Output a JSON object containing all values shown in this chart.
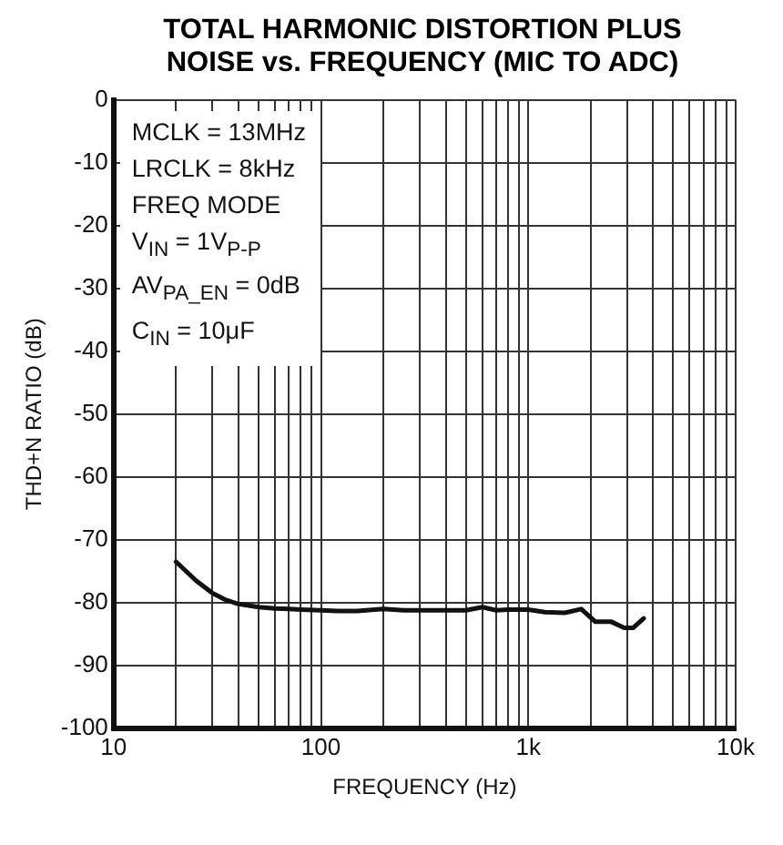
{
  "chart_data": {
    "type": "line",
    "title": "TOTAL HARMONIC DISTORTION PLUS NOISE vs. FREQUENCY (MIC TO ADC)",
    "xlabel": "FREQUENCY (Hz)",
    "ylabel": "THD+N RATIO (dB)",
    "x": [
      20,
      25,
      30,
      35,
      40,
      50,
      60,
      70,
      80,
      100,
      120,
      150,
      200,
      250,
      300,
      400,
      500,
      600,
      700,
      800,
      1000,
      1200,
      1500,
      1800,
      2100,
      2500,
      2900,
      3200,
      3600
    ],
    "series": [
      {
        "color": "#111111",
        "values": [
          -73.5,
          -76.5,
          -78.5,
          -79.6,
          -80.2,
          -80.7,
          -80.9,
          -81,
          -81.1,
          -81.2,
          -81.3,
          -81.3,
          -81,
          -81.2,
          -81.2,
          -81.2,
          -81.2,
          -80.7,
          -81.2,
          -81.1,
          -81.1,
          -81.5,
          -81.6,
          -81,
          -83,
          -83,
          -84,
          -84,
          -82.5
        ]
      }
    ],
    "log": "x",
    "xlim": [
      10,
      10000
    ],
    "xticks": [
      {
        "value": 10,
        "label": "10"
      },
      {
        "value": 20,
        "label": null
      },
      {
        "value": 30,
        "label": null
      },
      {
        "value": 40,
        "label": null
      },
      {
        "value": 50,
        "label": null
      },
      {
        "value": 60,
        "label": null
      },
      {
        "value": 70,
        "label": null
      },
      {
        "value": 80,
        "label": null
      },
      {
        "value": 90,
        "label": null
      },
      {
        "value": 100,
        "label": "100"
      },
      {
        "value": 200,
        "label": null
      },
      {
        "value": 300,
        "label": null
      },
      {
        "value": 400,
        "label": null
      },
      {
        "value": 500,
        "label": null
      },
      {
        "value": 600,
        "label": null
      },
      {
        "value": 700,
        "label": null
      },
      {
        "value": 800,
        "label": null
      },
      {
        "value": 900,
        "label": null
      },
      {
        "value": 1000,
        "label": "1k"
      },
      {
        "value": 2000,
        "label": null
      },
      {
        "value": 3000,
        "label": null
      },
      {
        "value": 4000,
        "label": null
      },
      {
        "value": 5000,
        "label": null
      },
      {
        "value": 6000,
        "label": null
      },
      {
        "value": 7000,
        "label": null
      },
      {
        "value": 8000,
        "label": null
      },
      {
        "value": 9000,
        "label": null
      },
      {
        "value": 10000,
        "label": "10k"
      }
    ],
    "ylim": [
      -100,
      0
    ],
    "yticks": [
      -100,
      -90,
      -80,
      -70,
      -60,
      -50,
      -40,
      -30,
      -20,
      -10,
      0
    ],
    "grid": true,
    "legend": false,
    "marker": "none",
    "line_style": "solid",
    "annotations": [
      "MCLK = 13MHz",
      "LRCLK = 8kHz",
      "FREQ MODE",
      "V$_{IN}$ = 1V$_{P-P}$",
      "AV$_{PA_EN}$ = 0dB",
      "C$_{IN}$ = 10μF"
    ]
  }
}
